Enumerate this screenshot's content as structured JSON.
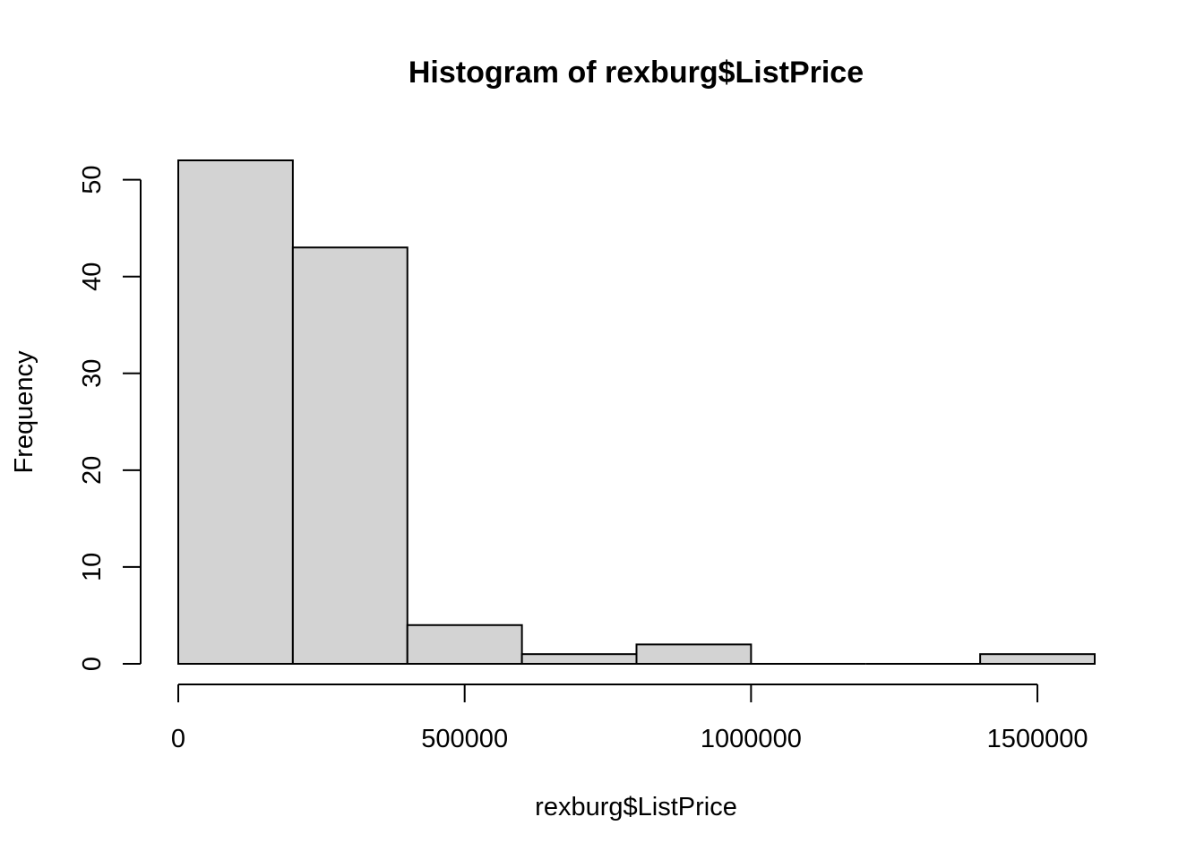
{
  "chart_data": {
    "type": "bar",
    "subtype": "histogram",
    "title": "Histogram of rexburg$ListPrice",
    "xlabel": "rexburg$ListPrice",
    "ylabel": "Frequency",
    "bins": [
      {
        "start": 0,
        "end": 200000,
        "count": 52
      },
      {
        "start": 200000,
        "end": 400000,
        "count": 43
      },
      {
        "start": 400000,
        "end": 600000,
        "count": 4
      },
      {
        "start": 600000,
        "end": 800000,
        "count": 1
      },
      {
        "start": 800000,
        "end": 1000000,
        "count": 2
      },
      {
        "start": 1000000,
        "end": 1200000,
        "count": 0
      },
      {
        "start": 1200000,
        "end": 1400000,
        "count": 0
      },
      {
        "start": 1400000,
        "end": 1600000,
        "count": 1
      }
    ],
    "xticks": [
      0,
      500000,
      1000000,
      1500000
    ],
    "xtick_labels": [
      "0",
      "500000",
      "1000000",
      "1500000"
    ],
    "yticks": [
      0,
      10,
      20,
      30,
      40,
      50
    ],
    "ytick_labels": [
      "0",
      "10",
      "20",
      "30",
      "40",
      "50"
    ],
    "xlim": [
      0,
      1600000
    ],
    "ylim": [
      0,
      52
    ],
    "grid": false,
    "colors": {
      "bar_fill": "#d3d3d3",
      "bar_stroke": "#000000",
      "axis": "#000000",
      "background": "#ffffff"
    }
  }
}
